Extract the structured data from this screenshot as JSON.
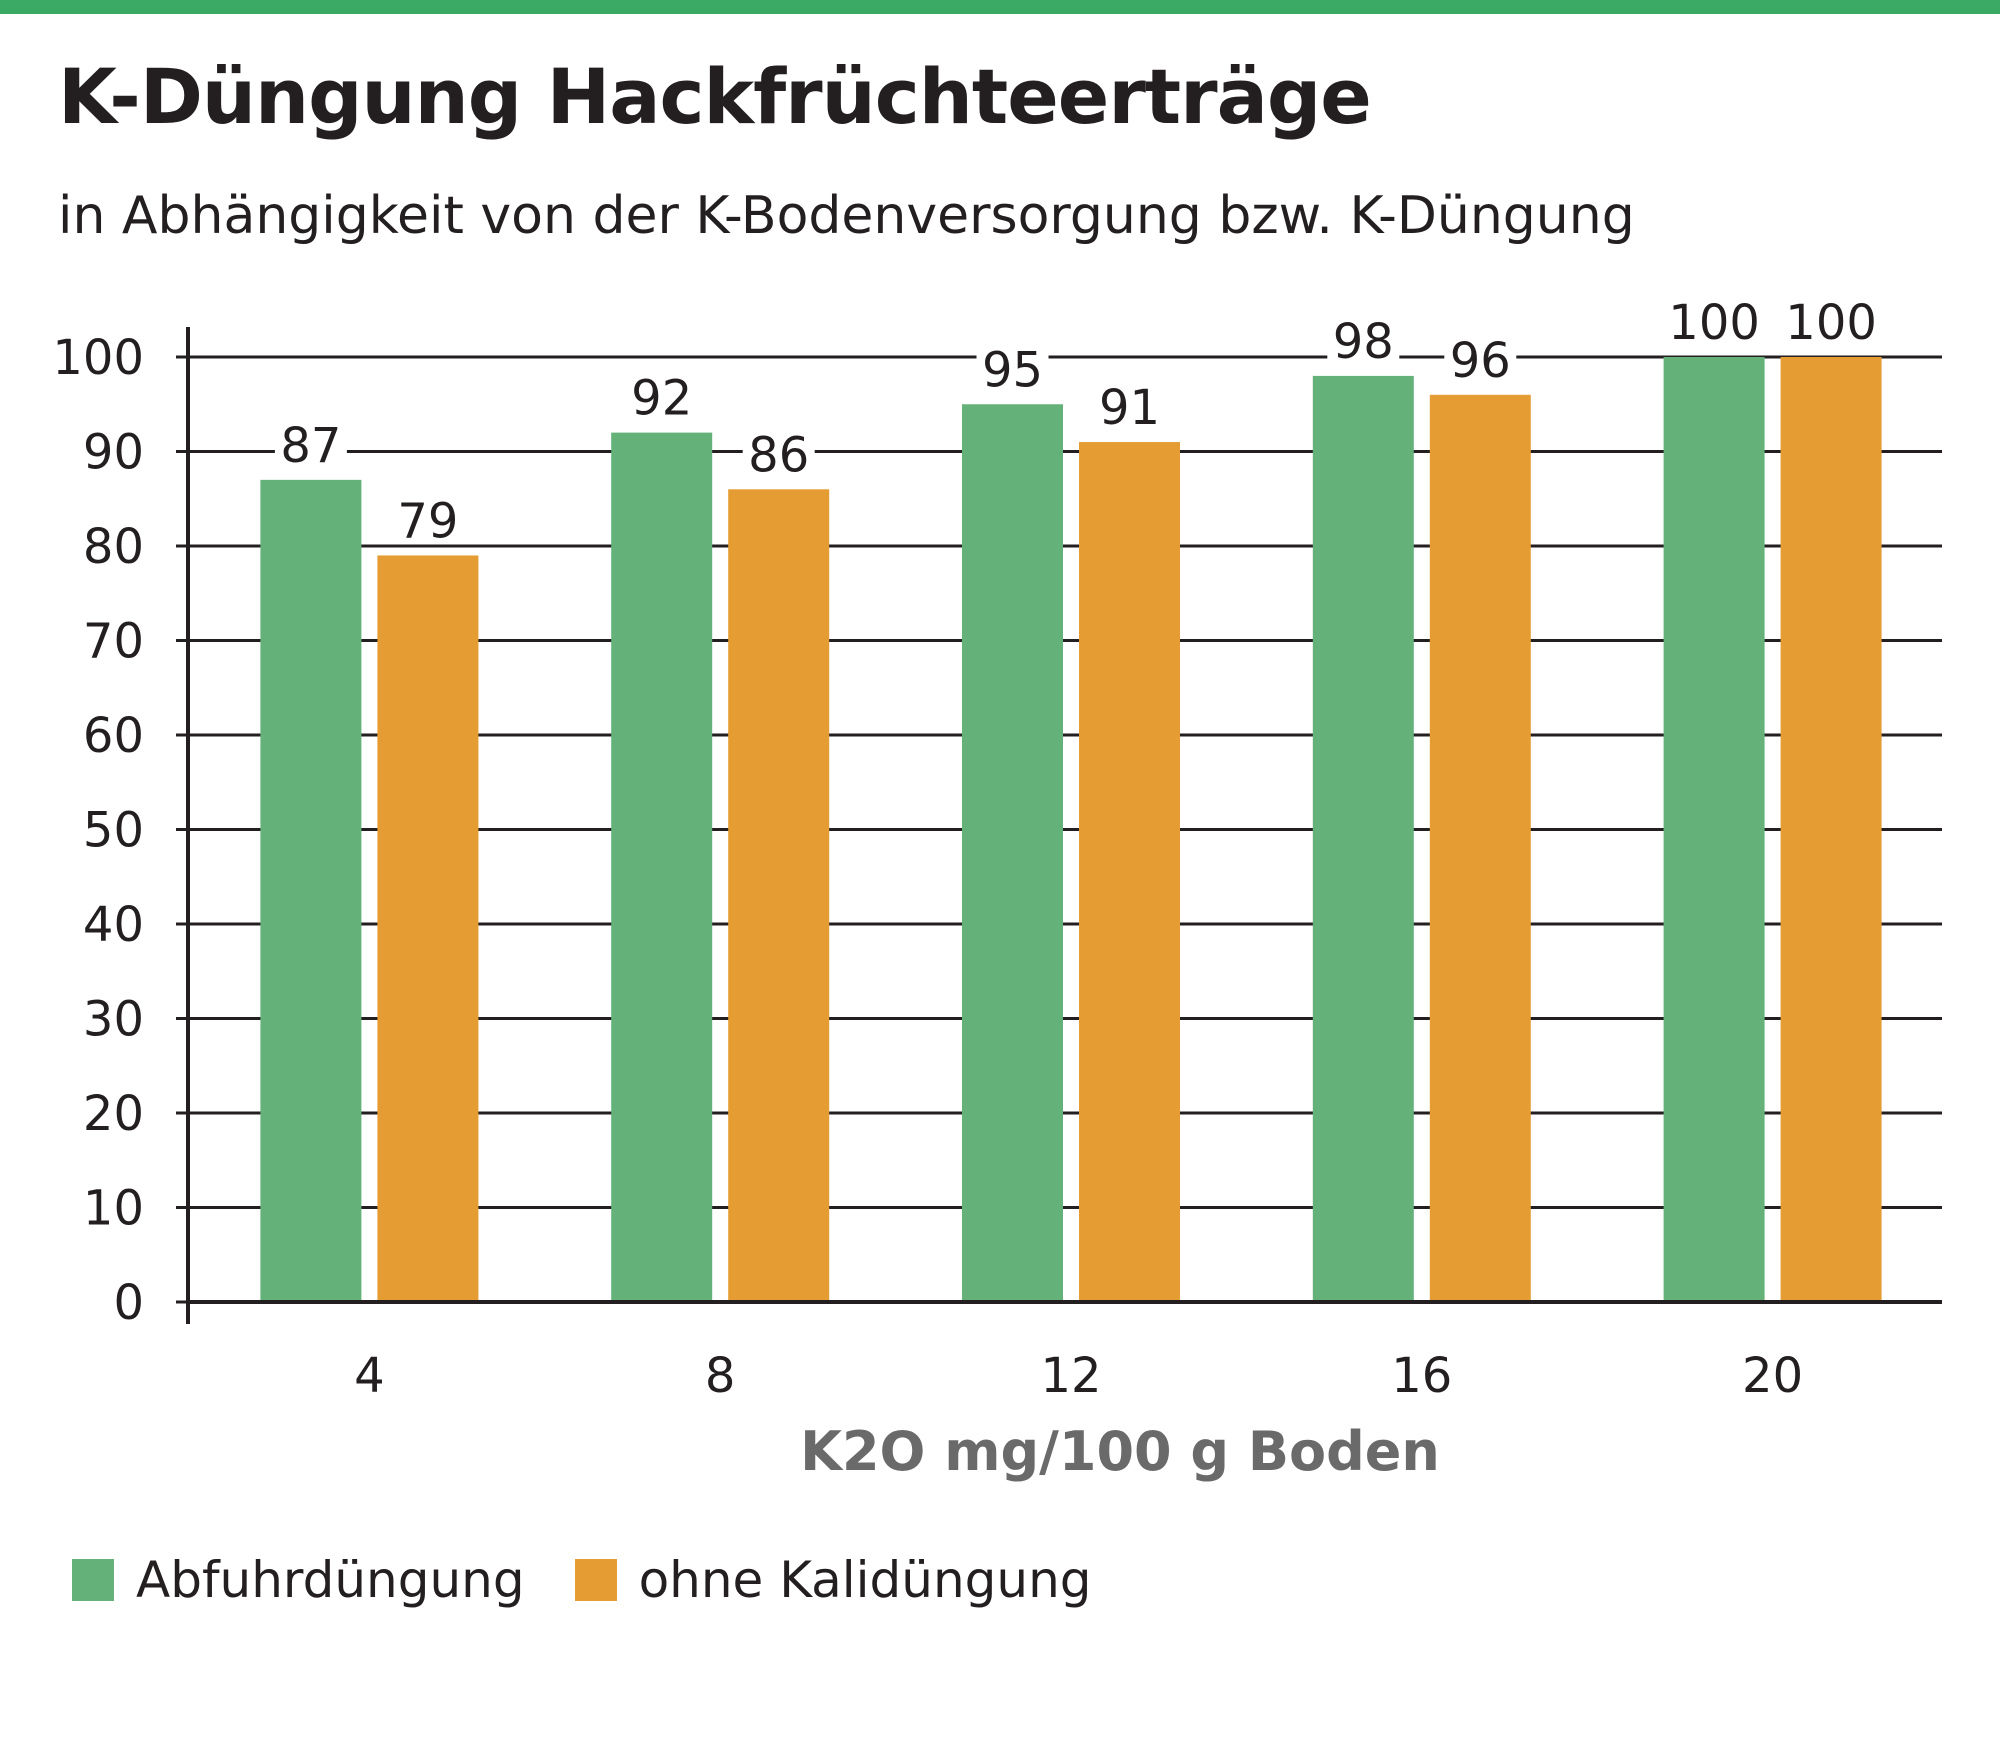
{
  "header": {
    "title": "K-Düngung Hackfrüchteerträge",
    "subtitle": "in Abhängigkeit von der K-Bodenversorgung bzw. K-Düngung"
  },
  "colors": {
    "accent": "#3aaa64",
    "series_green": "#64b27a",
    "series_orange": "#e59c32",
    "grid": "#231f20"
  },
  "chart_data": {
    "type": "bar",
    "title": "K-Düngung Hackfrüchteerträge",
    "subtitle": "in Abhängigkeit von der K-Bodenversorgung bzw. K-Düngung",
    "xlabel": "K2O mg/100 g Boden",
    "ylabel": "",
    "categories": [
      "4",
      "8",
      "12",
      "16",
      "20"
    ],
    "series": [
      {
        "name": "Abfuhrdüngung",
        "color": "#64b27a",
        "values": [
          87,
          92,
          95,
          98,
          100
        ]
      },
      {
        "name": "ohne Kalidüngung",
        "color": "#e59c32",
        "values": [
          79,
          86,
          91,
          96,
          100
        ]
      }
    ],
    "ylim": [
      0,
      100
    ],
    "yticks": [
      0,
      10,
      20,
      30,
      40,
      50,
      60,
      70,
      80,
      90,
      100
    ],
    "grid": true,
    "legend": "bottom-left",
    "data_labels": true
  }
}
